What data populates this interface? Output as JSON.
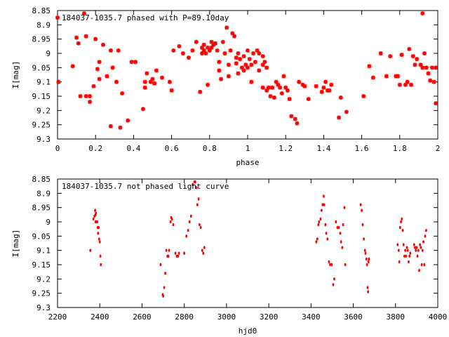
{
  "chart_data": [
    {
      "type": "scatter",
      "title": "184037-1035.7 phased with P=89.10day",
      "xlabel": "phase",
      "ylabel": "I[mag]",
      "xlim": [
        0,
        2
      ],
      "ylim": [
        8.85,
        9.3
      ],
      "y_inverted": true,
      "grid": false,
      "marker": "star",
      "color": "#ff0000",
      "x_ticks": [
        "0",
        "0.2",
        "0.4",
        "0.6",
        "0.8",
        "1",
        "1.2",
        "1.4",
        "1.6",
        "1.8",
        "2"
      ],
      "y_ticks": [
        "8.85",
        "8.9",
        "8.95",
        "9",
        "9.05",
        "9.1",
        "9.15",
        "9.2",
        "9.25",
        "9.3"
      ],
      "points": [
        [
          0.0,
          8.875
        ],
        [
          0.005,
          9.1
        ],
        [
          0.08,
          9.045
        ],
        [
          0.1,
          8.945
        ],
        [
          0.11,
          8.965
        ],
        [
          0.12,
          9.15
        ],
        [
          0.14,
          8.86
        ],
        [
          0.15,
          8.94
        ],
        [
          0.15,
          9.15
        ],
        [
          0.17,
          9.15
        ],
        [
          0.17,
          9.17
        ],
        [
          0.19,
          9.115
        ],
        [
          0.2,
          8.95
        ],
        [
          0.21,
          9.055
        ],
        [
          0.22,
          9.09
        ],
        [
          0.22,
          9.03
        ],
        [
          0.24,
          8.97
        ],
        [
          0.26,
          9.08
        ],
        [
          0.28,
          8.99
        ],
        [
          0.28,
          9.255
        ],
        [
          0.29,
          9.05
        ],
        [
          0.31,
          9.1
        ],
        [
          0.32,
          8.99
        ],
        [
          0.33,
          9.26
        ],
        [
          0.34,
          9.14
        ],
        [
          0.37,
          9.235
        ],
        [
          0.39,
          9.03
        ],
        [
          0.41,
          9.03
        ],
        [
          0.45,
          9.195
        ],
        [
          0.46,
          9.1
        ],
        [
          0.46,
          9.12
        ],
        [
          0.47,
          9.07
        ],
        [
          0.49,
          9.1
        ],
        [
          0.5,
          9.09
        ],
        [
          0.51,
          9.105
        ],
        [
          0.52,
          9.06
        ],
        [
          0.55,
          9.085
        ],
        [
          0.59,
          9.1
        ],
        [
          0.6,
          9.13
        ],
        [
          0.61,
          8.99
        ],
        [
          0.64,
          8.975
        ],
        [
          0.66,
          9.0
        ],
        [
          0.69,
          9.015
        ],
        [
          0.71,
          8.99
        ],
        [
          0.73,
          8.96
        ],
        [
          0.75,
          9.135
        ],
        [
          0.76,
          8.98
        ],
        [
          0.76,
          9.0
        ],
        [
          0.77,
          8.99
        ],
        [
          0.77,
          8.97
        ],
        [
          0.78,
          9.0
        ],
        [
          0.79,
          8.98
        ],
        [
          0.79,
          9.11
        ],
        [
          0.8,
          8.99
        ],
        [
          0.81,
          8.98
        ],
        [
          0.81,
          8.96
        ],
        [
          0.82,
          8.97
        ],
        [
          0.83,
          8.965
        ],
        [
          0.84,
          8.99
        ],
        [
          0.85,
          9.03
        ],
        [
          0.85,
          9.06
        ],
        [
          0.86,
          9.09
        ],
        [
          0.87,
          8.96
        ],
        [
          0.88,
          9.0
        ],
        [
          0.89,
          8.91
        ],
        [
          0.9,
          9.04
        ],
        [
          0.9,
          9.08
        ],
        [
          0.91,
          8.99
        ],
        [
          0.92,
          8.93
        ],
        [
          0.93,
          8.94
        ],
        [
          0.94,
          9.015
        ],
        [
          0.94,
          9.035
        ],
        [
          0.95,
          9.0
        ],
        [
          0.95,
          9.07
        ],
        [
          0.96,
          9.02
        ],
        [
          0.97,
          9.05
        ],
        [
          0.98,
          9.01
        ],
        [
          0.98,
          9.06
        ],
        [
          0.99,
          9.04
        ],
        [
          1.0,
          8.99
        ],
        [
          1.0,
          9.05
        ],
        [
          1.01,
          9.02
        ],
        [
          1.02,
          9.1
        ],
        [
          1.02,
          9.04
        ],
        [
          1.03,
          9.0
        ],
        [
          1.04,
          9.03
        ],
        [
          1.05,
          8.99
        ],
        [
          1.06,
          9.0
        ],
        [
          1.06,
          9.06
        ],
        [
          1.08,
          9.01
        ],
        [
          1.08,
          9.12
        ],
        [
          1.08,
          9.04
        ],
        [
          1.09,
          9.03
        ],
        [
          1.1,
          9.13
        ],
        [
          1.1,
          9.05
        ],
        [
          1.11,
          9.12
        ],
        [
          1.12,
          9.15
        ],
        [
          1.13,
          9.12
        ],
        [
          1.14,
          9.155
        ],
        [
          1.15,
          9.1
        ],
        [
          1.16,
          9.11
        ],
        [
          1.17,
          9.12
        ],
        [
          1.18,
          9.14
        ],
        [
          1.19,
          9.08
        ],
        [
          1.2,
          9.12
        ],
        [
          1.21,
          9.13
        ],
        [
          1.22,
          9.16
        ],
        [
          1.23,
          9.22
        ],
        [
          1.25,
          9.23
        ],
        [
          1.26,
          9.245
        ],
        [
          1.27,
          9.1
        ],
        [
          1.29,
          9.11
        ],
        [
          1.3,
          9.115
        ],
        [
          1.32,
          9.16
        ],
        [
          1.36,
          9.115
        ],
        [
          1.39,
          9.135
        ],
        [
          1.4,
          9.12
        ],
        [
          1.41,
          9.1
        ],
        [
          1.42,
          9.13
        ],
        [
          1.43,
          9.13
        ],
        [
          1.44,
          9.11
        ],
        [
          1.48,
          9.225
        ],
        [
          1.49,
          9.155
        ],
        [
          1.52,
          9.205
        ],
        [
          1.61,
          9.15
        ],
        [
          1.64,
          9.045
        ],
        [
          1.66,
          9.085
        ],
        [
          1.7,
          9.0
        ],
        [
          1.73,
          9.08
        ],
        [
          1.75,
          9.01
        ],
        [
          1.78,
          9.08
        ],
        [
          1.79,
          9.08
        ],
        [
          1.8,
          9.11
        ],
        [
          1.81,
          9.005
        ],
        [
          1.83,
          9.11
        ],
        [
          1.84,
          9.1
        ],
        [
          1.85,
          8.985
        ],
        [
          1.86,
          9.11
        ],
        [
          1.87,
          9.01
        ],
        [
          1.88,
          9.04
        ],
        [
          1.89,
          9.02
        ],
        [
          1.91,
          9.04
        ],
        [
          1.92,
          8.86
        ],
        [
          1.92,
          9.05
        ],
        [
          1.93,
          9.0
        ],
        [
          1.94,
          9.05
        ],
        [
          1.95,
          9.07
        ],
        [
          1.96,
          9.095
        ],
        [
          1.97,
          9.05
        ],
        [
          1.98,
          9.1
        ],
        [
          1.99,
          9.05
        ],
        [
          1.99,
          9.175
        ]
      ]
    },
    {
      "type": "scatter",
      "title": "184037-1035.7 not phased light curve",
      "xlabel": "hjd0",
      "ylabel": "I[mag]",
      "xlim": [
        2200,
        4000
      ],
      "ylim": [
        8.85,
        9.3
      ],
      "y_inverted": true,
      "grid": false,
      "marker": "dot",
      "color": "#ff0000",
      "x_ticks": [
        "2200",
        "2400",
        "2600",
        "2800",
        "3000",
        "3200",
        "3400",
        "3600",
        "3800",
        "4000"
      ],
      "y_ticks": [
        "8.85",
        "8.9",
        "8.95",
        "9",
        "9.05",
        "9.1",
        "9.15",
        "9.2",
        "9.25",
        "9.3"
      ],
      "points": [
        [
          2355,
          9.1
        ],
        [
          2370,
          8.99
        ],
        [
          2375,
          8.98
        ],
        [
          2378,
          8.96
        ],
        [
          2380,
          8.975
        ],
        [
          2380,
          9.0
        ],
        [
          2382,
          8.97
        ],
        [
          2385,
          9.0
        ],
        [
          2388,
          9.0
        ],
        [
          2390,
          9.02
        ],
        [
          2392,
          9.04
        ],
        [
          2395,
          9.02
        ],
        [
          2397,
          9.06
        ],
        [
          2400,
          9.07
        ],
        [
          2403,
          9.12
        ],
        [
          2405,
          9.15
        ],
        [
          2688,
          9.15
        ],
        [
          2698,
          9.255
        ],
        [
          2700,
          9.26
        ],
        [
          2705,
          9.23
        ],
        [
          2710,
          9.18
        ],
        [
          2715,
          9.1
        ],
        [
          2720,
          9.12
        ],
        [
          2725,
          9.12
        ],
        [
          2728,
          9.1
        ],
        [
          2735,
          9.0
        ],
        [
          2738,
          8.985
        ],
        [
          2742,
          8.99
        ],
        [
          2748,
          9.01
        ],
        [
          2758,
          9.11
        ],
        [
          2765,
          9.12
        ],
        [
          2770,
          9.12
        ],
        [
          2775,
          9.11
        ],
        [
          2800,
          9.11
        ],
        [
          2810,
          9.05
        ],
        [
          2818,
          9.03
        ],
        [
          2825,
          9.0
        ],
        [
          2832,
          8.98
        ],
        [
          2840,
          8.87
        ],
        [
          2848,
          8.86
        ],
        [
          2852,
          8.86
        ],
        [
          2858,
          8.88
        ],
        [
          2862,
          8.94
        ],
        [
          2868,
          8.92
        ],
        [
          2872,
          9.01
        ],
        [
          2878,
          9.02
        ],
        [
          2885,
          9.1
        ],
        [
          2890,
          9.11
        ],
        [
          2895,
          9.09
        ],
        [
          3425,
          9.07
        ],
        [
          3430,
          9.06
        ],
        [
          3435,
          9.01
        ],
        [
          3438,
          9.0
        ],
        [
          3445,
          8.99
        ],
        [
          3450,
          8.96
        ],
        [
          3455,
          8.94
        ],
        [
          3460,
          8.91
        ],
        [
          3462,
          8.94
        ],
        [
          3468,
          9.01
        ],
        [
          3472,
          9.04
        ],
        [
          3478,
          9.06
        ],
        [
          3485,
          9.14
        ],
        [
          3490,
          9.15
        ],
        [
          3498,
          9.15
        ],
        [
          3505,
          9.22
        ],
        [
          3510,
          9.2
        ],
        [
          3518,
          9.0
        ],
        [
          3525,
          9.02
        ],
        [
          3532,
          9.02
        ],
        [
          3538,
          9.04
        ],
        [
          3542,
          9.07
        ],
        [
          3548,
          9.09
        ],
        [
          3552,
          9.01
        ],
        [
          3558,
          8.95
        ],
        [
          3562,
          9.15
        ],
        [
          3635,
          8.94
        ],
        [
          3640,
          8.96
        ],
        [
          3645,
          9.01
        ],
        [
          3650,
          9.06
        ],
        [
          3655,
          9.1
        ],
        [
          3658,
          9.11
        ],
        [
          3662,
          9.13
        ],
        [
          3665,
          9.15
        ],
        [
          3668,
          9.23
        ],
        [
          3670,
          9.245
        ],
        [
          3672,
          9.14
        ],
        [
          3674,
          9.13
        ],
        [
          3810,
          9.08
        ],
        [
          3815,
          9.1
        ],
        [
          3818,
          9.14
        ],
        [
          3822,
          9.02
        ],
        [
          3826,
          9.0
        ],
        [
          3830,
          8.99
        ],
        [
          3834,
          9.03
        ],
        [
          3838,
          9.08
        ],
        [
          3842,
          9.12
        ],
        [
          3846,
          9.1
        ],
        [
          3850,
          9.12
        ],
        [
          3854,
          9.09
        ],
        [
          3858,
          9.1
        ],
        [
          3862,
          9.14
        ],
        [
          3866,
          9.12
        ],
        [
          3870,
          9.11
        ],
        [
          3888,
          9.08
        ],
        [
          3892,
          9.09
        ],
        [
          3896,
          9.1
        ],
        [
          3900,
          9.09
        ],
        [
          3904,
          9.12
        ],
        [
          3908,
          9.1
        ],
        [
          3912,
          9.17
        ],
        [
          3916,
          9.08
        ],
        [
          3920,
          9.09
        ],
        [
          3924,
          9.15
        ],
        [
          3928,
          9.1
        ],
        [
          3932,
          9.07
        ],
        [
          3936,
          9.15
        ],
        [
          3940,
          9.05
        ],
        [
          3945,
          9.03
        ]
      ]
    }
  ]
}
